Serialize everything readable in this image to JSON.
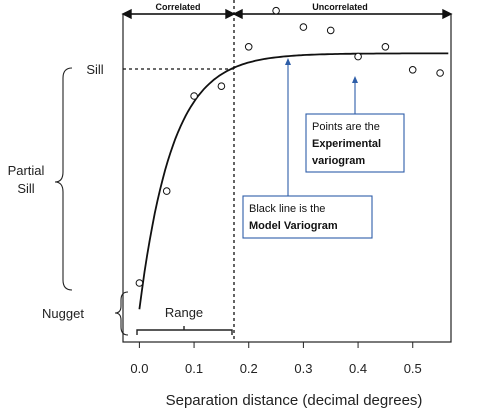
{
  "chart_data": {
    "type": "scatter",
    "xlabel": "Separation distance (decimal degrees)",
    "xlim": [
      -0.03,
      0.57
    ],
    "ylim": [
      0.0,
      1.0
    ],
    "x_ticks": [
      "0.0",
      "0.1",
      "0.2",
      "0.3",
      "0.4",
      "0.5"
    ],
    "x_tick_values": [
      0.0,
      0.1,
      0.2,
      0.3,
      0.4,
      0.5
    ],
    "nugget": 0.1,
    "sill": 0.88,
    "range": 0.18,
    "points": [
      {
        "x": 0.0,
        "y": 0.18
      },
      {
        "x": 0.05,
        "y": 0.46
      },
      {
        "x": 0.1,
        "y": 0.75
      },
      {
        "x": 0.15,
        "y": 0.78
      },
      {
        "x": 0.2,
        "y": 0.9
      },
      {
        "x": 0.25,
        "y": 1.01
      },
      {
        "x": 0.3,
        "y": 0.96
      },
      {
        "x": 0.35,
        "y": 0.95
      },
      {
        "x": 0.4,
        "y": 0.87
      },
      {
        "x": 0.45,
        "y": 0.9
      },
      {
        "x": 0.5,
        "y": 0.83
      },
      {
        "x": 0.55,
        "y": 0.82
      }
    ],
    "annotations": {
      "correlated": "Correlated",
      "uncorrelated": "Uncorrelated",
      "sill": "Sill",
      "partial_sill_1": "Partial",
      "partial_sill_2": "Sill",
      "nugget": "Nugget",
      "range": "Range",
      "experimental_1": "Points are the",
      "experimental_2": "Experimental",
      "experimental_3": "variogram",
      "model_1": "Black line is the",
      "model_2": "Model Variogram"
    }
  }
}
